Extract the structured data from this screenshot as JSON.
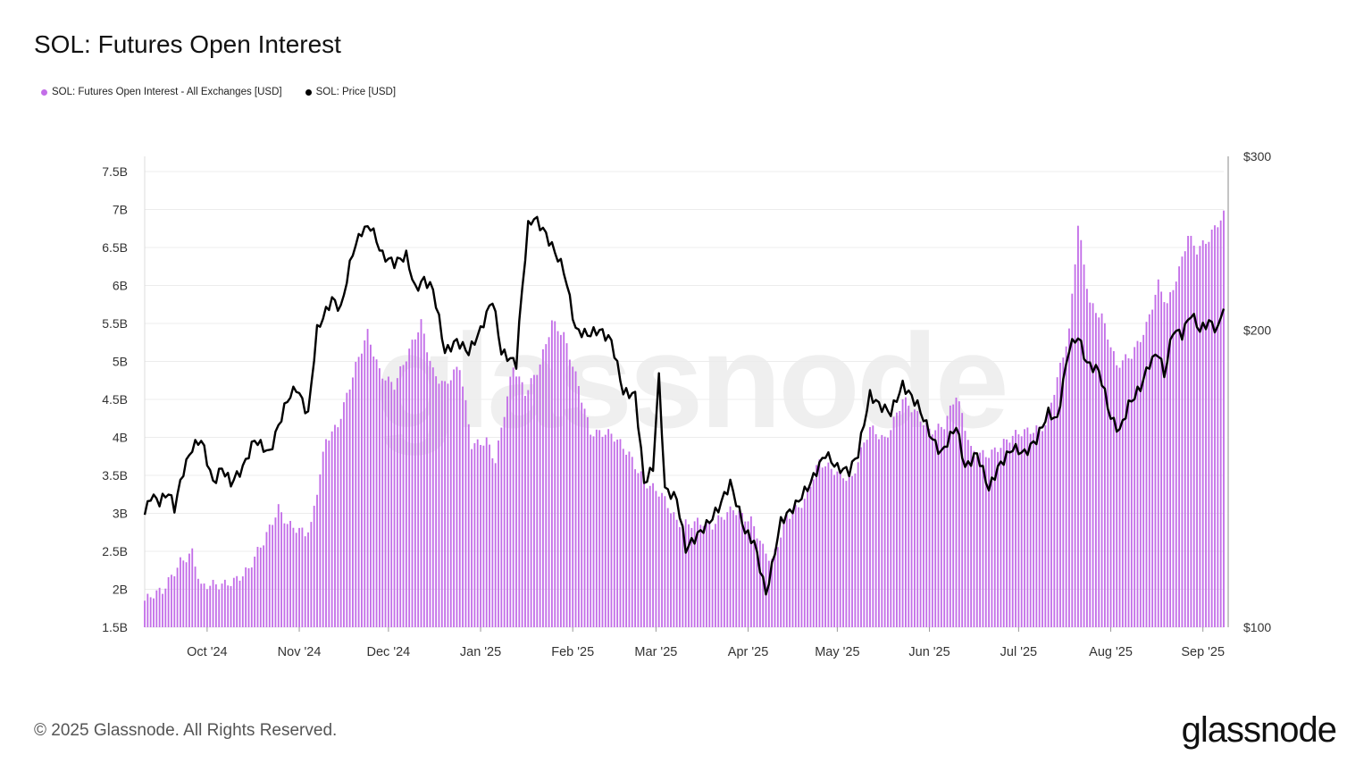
{
  "header": {
    "title": "SOL: Futures Open Interest"
  },
  "legend": [
    {
      "label": "SOL: Futures Open Interest - All Exchanges [USD]",
      "color": "#c36ee8"
    },
    {
      "label": "SOL: Price [USD]",
      "color": "#000000"
    }
  ],
  "watermark": "glassnode",
  "footer": {
    "copyright": "© 2025 Glassnode. All Rights Reserved.",
    "brand": "glassnode"
  },
  "chart_data": {
    "type": "bar",
    "title": "SOL: Futures Open Interest",
    "x_start": "2024-09-10",
    "x_end": "2025-09-08",
    "x_tick_labels": [
      "Oct '24",
      "Nov '24",
      "Dec '24",
      "Jan '25",
      "Feb '25",
      "Mar '25",
      "Apr '25",
      "May '25",
      "Jun '25",
      "Jul '25",
      "Aug '25",
      "Sep '25"
    ],
    "y_left": {
      "ticks": [
        "1.5B",
        "2B",
        "2.5B",
        "3B",
        "3.5B",
        "4B",
        "4.5B",
        "5B",
        "5.5B",
        "6B",
        "6.5B",
        "7B",
        "7.5B"
      ],
      "ylim": [
        1.5,
        7.5
      ],
      "unit": "B"
    },
    "y_right": {
      "ticks": [
        "$100",
        "$200",
        "$300"
      ],
      "ylim": [
        100,
        300
      ],
      "scale": "log"
    },
    "grid": true,
    "series": [
      {
        "name": "SOL: Futures Open Interest - All Exchanges [USD]",
        "kind": "bar",
        "color": "#c36ee8",
        "anchors": [
          [
            "2024-09-10",
            1.85
          ],
          [
            "2024-09-16",
            1.95
          ],
          [
            "2024-09-22",
            2.4
          ],
          [
            "2024-09-26",
            2.5
          ],
          [
            "2024-09-29",
            2.0
          ],
          [
            "2024-10-05",
            2.05
          ],
          [
            "2024-10-10",
            2.15
          ],
          [
            "2024-10-15",
            2.25
          ],
          [
            "2024-10-20",
            2.6
          ],
          [
            "2024-10-25",
            3.1
          ],
          [
            "2024-10-28",
            2.9
          ],
          [
            "2024-11-03",
            2.7
          ],
          [
            "2024-11-05",
            2.8
          ],
          [
            "2024-11-10",
            4.0
          ],
          [
            "2024-11-14",
            4.2
          ],
          [
            "2024-11-20",
            4.9
          ],
          [
            "2024-11-24",
            5.35
          ],
          [
            "2024-11-28",
            4.9
          ],
          [
            "2024-12-03",
            4.7
          ],
          [
            "2024-12-08",
            5.1
          ],
          [
            "2024-12-12",
            5.5
          ],
          [
            "2024-12-16",
            4.9
          ],
          [
            "2024-12-20",
            4.7
          ],
          [
            "2024-12-25",
            4.9
          ],
          [
            "2024-12-29",
            3.9
          ],
          [
            "2025-01-03",
            4.0
          ],
          [
            "2025-01-06",
            3.7
          ],
          [
            "2025-01-12",
            4.9
          ],
          [
            "2025-01-16",
            4.6
          ],
          [
            "2025-01-21",
            5.0
          ],
          [
            "2025-01-25",
            5.5
          ],
          [
            "2025-01-29",
            5.3
          ],
          [
            "2025-02-03",
            4.7
          ],
          [
            "2025-02-07",
            4.1
          ],
          [
            "2025-02-14",
            4.0
          ],
          [
            "2025-02-20",
            3.8
          ],
          [
            "2025-02-26",
            3.4
          ],
          [
            "2025-03-03",
            3.2
          ],
          [
            "2025-03-08",
            2.9
          ],
          [
            "2025-03-15",
            2.9
          ],
          [
            "2025-03-20",
            2.8
          ],
          [
            "2025-03-27",
            3.1
          ],
          [
            "2025-04-02",
            2.9
          ],
          [
            "2025-04-06",
            2.5
          ],
          [
            "2025-04-09",
            2.35
          ],
          [
            "2025-04-14",
            3.0
          ],
          [
            "2025-04-20",
            3.15
          ],
          [
            "2025-04-25",
            3.65
          ],
          [
            "2025-04-30",
            3.6
          ],
          [
            "2025-05-06",
            3.45
          ],
          [
            "2025-05-12",
            4.1
          ],
          [
            "2025-05-17",
            4.0
          ],
          [
            "2025-05-23",
            4.5
          ],
          [
            "2025-05-27",
            4.3
          ],
          [
            "2025-06-01",
            4.1
          ],
          [
            "2025-06-06",
            4.2
          ],
          [
            "2025-06-10",
            4.55
          ],
          [
            "2025-06-15",
            3.8
          ],
          [
            "2025-06-20",
            3.8
          ],
          [
            "2025-06-25",
            3.9
          ],
          [
            "2025-06-30",
            4.0
          ],
          [
            "2025-07-05",
            4.1
          ],
          [
            "2025-07-10",
            4.2
          ],
          [
            "2025-07-14",
            4.75
          ],
          [
            "2025-07-18",
            5.35
          ],
          [
            "2025-07-21",
            6.8
          ],
          [
            "2025-07-25",
            5.8
          ],
          [
            "2025-07-29",
            5.6
          ],
          [
            "2025-08-03",
            4.9
          ],
          [
            "2025-08-08",
            5.1
          ],
          [
            "2025-08-13",
            5.5
          ],
          [
            "2025-08-17",
            6.0
          ],
          [
            "2025-08-20",
            5.7
          ],
          [
            "2025-08-24",
            6.2
          ],
          [
            "2025-08-27",
            6.7
          ],
          [
            "2025-08-30",
            6.5
          ],
          [
            "2025-09-03",
            6.6
          ],
          [
            "2025-09-08",
            6.9
          ]
        ]
      },
      {
        "name": "SOL: Price [USD]",
        "kind": "line",
        "color": "#000000",
        "anchors": [
          [
            "2024-09-10",
            130
          ],
          [
            "2024-09-12",
            136
          ],
          [
            "2024-09-15",
            134
          ],
          [
            "2024-09-18",
            137
          ],
          [
            "2024-09-20",
            132
          ],
          [
            "2024-09-23",
            144
          ],
          [
            "2024-09-26",
            152
          ],
          [
            "2024-09-29",
            155
          ],
          [
            "2024-10-03",
            140
          ],
          [
            "2024-10-06",
            145
          ],
          [
            "2024-10-09",
            140
          ],
          [
            "2024-10-13",
            145
          ],
          [
            "2024-10-17",
            155
          ],
          [
            "2024-10-22",
            150
          ],
          [
            "2024-10-28",
            170
          ],
          [
            "2024-10-31",
            175
          ],
          [
            "2024-11-04",
            164
          ],
          [
            "2024-11-07",
            200
          ],
          [
            "2024-11-12",
            215
          ],
          [
            "2024-11-15",
            210
          ],
          [
            "2024-11-19",
            240
          ],
          [
            "2024-11-22",
            252
          ],
          [
            "2024-11-25",
            255
          ],
          [
            "2024-11-29",
            238
          ],
          [
            "2024-12-03",
            234
          ],
          [
            "2024-12-07",
            238
          ],
          [
            "2024-12-10",
            220
          ],
          [
            "2024-12-13",
            225
          ],
          [
            "2024-12-16",
            220
          ],
          [
            "2024-12-20",
            190
          ],
          [
            "2024-12-24",
            195
          ],
          [
            "2024-12-28",
            190
          ],
          [
            "2025-01-01",
            200
          ],
          [
            "2025-01-05",
            215
          ],
          [
            "2025-01-08",
            190
          ],
          [
            "2025-01-13",
            185
          ],
          [
            "2025-01-17",
            255
          ],
          [
            "2025-01-19",
            260
          ],
          [
            "2025-01-22",
            253
          ],
          [
            "2025-01-26",
            240
          ],
          [
            "2025-01-29",
            230
          ],
          [
            "2025-02-02",
            200
          ],
          [
            "2025-02-06",
            198
          ],
          [
            "2025-02-10",
            200
          ],
          [
            "2025-02-14",
            195
          ],
          [
            "2025-02-18",
            173
          ],
          [
            "2025-02-22",
            172
          ],
          [
            "2025-02-25",
            140
          ],
          [
            "2025-02-28",
            145
          ],
          [
            "2025-03-02",
            179
          ],
          [
            "2025-03-04",
            138
          ],
          [
            "2025-03-08",
            135
          ],
          [
            "2025-03-11",
            120
          ],
          [
            "2025-03-16",
            125
          ],
          [
            "2025-03-19",
            128
          ],
          [
            "2025-03-22",
            132
          ],
          [
            "2025-03-26",
            140
          ],
          [
            "2025-03-31",
            125
          ],
          [
            "2025-04-03",
            122
          ],
          [
            "2025-04-07",
            108
          ],
          [
            "2025-04-09",
            115
          ],
          [
            "2025-04-12",
            128
          ],
          [
            "2025-04-17",
            133
          ],
          [
            "2025-04-22",
            140
          ],
          [
            "2025-04-27",
            150
          ],
          [
            "2025-05-01",
            145
          ],
          [
            "2025-05-05",
            144
          ],
          [
            "2025-05-08",
            150
          ],
          [
            "2025-05-12",
            172
          ],
          [
            "2025-05-15",
            168
          ],
          [
            "2025-05-19",
            165
          ],
          [
            "2025-05-23",
            176
          ],
          [
            "2025-05-28",
            168
          ],
          [
            "2025-06-02",
            155
          ],
          [
            "2025-06-05",
            150
          ],
          [
            "2025-06-10",
            160
          ],
          [
            "2025-06-13",
            145
          ],
          [
            "2025-06-17",
            150
          ],
          [
            "2025-06-21",
            138
          ],
          [
            "2025-06-24",
            145
          ],
          [
            "2025-06-29",
            152
          ],
          [
            "2025-07-03",
            150
          ],
          [
            "2025-07-07",
            155
          ],
          [
            "2025-07-11",
            165
          ],
          [
            "2025-07-14",
            162
          ],
          [
            "2025-07-18",
            192
          ],
          [
            "2025-07-21",
            197
          ],
          [
            "2025-07-24",
            185
          ],
          [
            "2025-07-28",
            182
          ],
          [
            "2025-08-01",
            163
          ],
          [
            "2025-08-04",
            158
          ],
          [
            "2025-08-07",
            168
          ],
          [
            "2025-08-11",
            175
          ],
          [
            "2025-08-14",
            185
          ],
          [
            "2025-08-17",
            190
          ],
          [
            "2025-08-19",
            180
          ],
          [
            "2025-08-22",
            200
          ],
          [
            "2025-08-25",
            198
          ],
          [
            "2025-08-28",
            208
          ],
          [
            "2025-08-31",
            200
          ],
          [
            "2025-09-03",
            204
          ],
          [
            "2025-09-06",
            200
          ],
          [
            "2025-09-08",
            212
          ]
        ]
      }
    ]
  }
}
